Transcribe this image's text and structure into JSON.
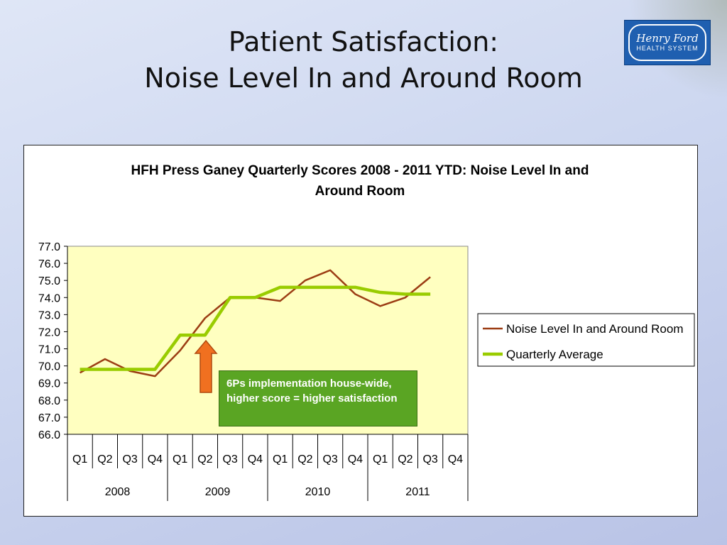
{
  "slide": {
    "title_line1": "Patient Satisfaction:",
    "title_line2": "Noise Level In and Around Room",
    "logo_text": "Henry Ford HEALTH SYSTEM"
  },
  "annotation": {
    "text": "6Ps implementation house-wide, higher score = higher satisfaction",
    "arrow_color": "#f07020",
    "box_color": "#5aa523"
  },
  "colors": {
    "plot_background": "#ffffc0",
    "series1": "#9c3d14",
    "series2": "#99cc00"
  },
  "chart_data": {
    "type": "line",
    "title": "HFH Press Ganey Quarterly Scores 2008 - 2011 YTD:  Noise Level In and Around Room",
    "title_lines": [
      "HFH Press Ganey Quarterly Scores 2008 - 2011 YTD:  Noise Level In and",
      "Around Room"
    ],
    "categories": [
      "Q1",
      "Q2",
      "Q3",
      "Q4",
      "Q1",
      "Q2",
      "Q3",
      "Q4",
      "Q1",
      "Q2",
      "Q3",
      "Q4",
      "Q1",
      "Q2",
      "Q3",
      "Q4"
    ],
    "category_groups": [
      {
        "label": "2008",
        "count": 4
      },
      {
        "label": "2009",
        "count": 4
      },
      {
        "label": "2010",
        "count": 4
      },
      {
        "label": "2011",
        "count": 4
      }
    ],
    "ylim": [
      66,
      77
    ],
    "yticks": [
      "66.0",
      "67.0",
      "68.0",
      "69.0",
      "70.0",
      "71.0",
      "72.0",
      "73.0",
      "74.0",
      "75.0",
      "76.0",
      "77.0"
    ],
    "grid": false,
    "legend_position": "right",
    "series": [
      {
        "name": "Noise Level In and Around Room",
        "color": "#9c3d14",
        "values": [
          69.6,
          70.4,
          69.7,
          69.4,
          70.9,
          72.8,
          74.0,
          74.0,
          73.8,
          75.0,
          75.6,
          74.2,
          73.5,
          74.0,
          75.2,
          null
        ]
      },
      {
        "name": "Quarterly Average",
        "color": "#99cc00",
        "values": [
          69.8,
          69.8,
          69.8,
          69.8,
          71.8,
          71.8,
          74.0,
          74.0,
          74.6,
          74.6,
          74.6,
          74.6,
          74.3,
          74.2,
          74.2,
          null
        ]
      }
    ]
  }
}
